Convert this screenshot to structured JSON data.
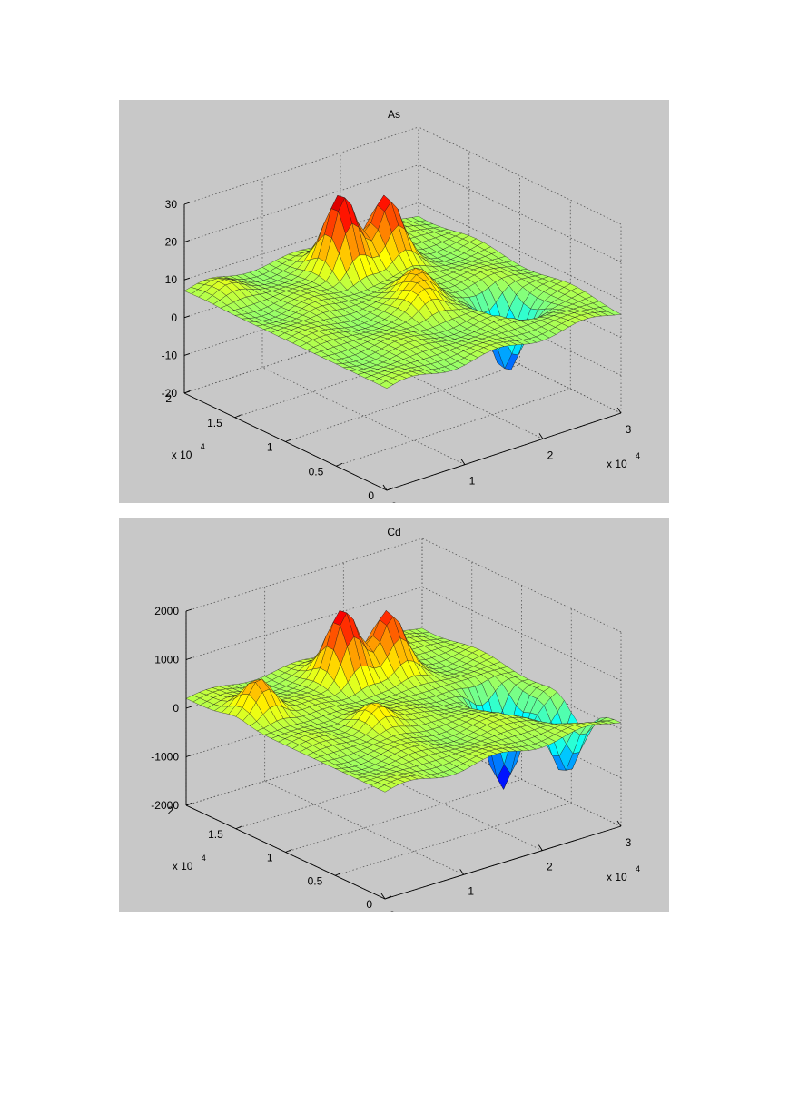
{
  "figure_title": "",
  "chart_data": [
    {
      "type": "surface",
      "title": "As",
      "xlabel": "",
      "ylabel": "",
      "zlabel": "",
      "x_multiplier": "x 10",
      "x_multiplier_exp": "4",
      "y_multiplier": "x 10",
      "y_multiplier_exp": "4",
      "xlim": [
        0,
        30000
      ],
      "ylim": [
        0,
        20000
      ],
      "zlim": [
        -20,
        30
      ],
      "x_ticks": [
        "0",
        "1",
        "2",
        "3"
      ],
      "y_ticks": [
        "0",
        "0.5",
        "1",
        "1.5",
        "2"
      ],
      "z_ticks": [
        "-20",
        "-10",
        "0",
        "10",
        "20",
        "30"
      ],
      "grid": true,
      "colormap": "jet",
      "base_level": 7,
      "peaks": [
        {
          "x": 15000,
          "y": 16000,
          "z": 28
        },
        {
          "x": 20000,
          "y": 15500,
          "z": 24
        },
        {
          "x": 17000,
          "y": 10000,
          "z": 14
        },
        {
          "x": 15000,
          "y": 8000,
          "z": 12
        },
        {
          "x": 7000,
          "y": 12000,
          "z": 8
        },
        {
          "x": 23000,
          "y": 6000,
          "z": -12
        },
        {
          "x": 3000,
          "y": 18000,
          "z": 9
        }
      ]
    },
    {
      "type": "surface",
      "title": "Cd",
      "xlabel": "",
      "ylabel": "",
      "zlabel": "",
      "x_multiplier": "x 10",
      "x_multiplier_exp": "4",
      "y_multiplier": "x 10",
      "y_multiplier_exp": "4",
      "xlim": [
        0,
        30000
      ],
      "ylim": [
        0,
        20000
      ],
      "zlim": [
        -2000,
        2000
      ],
      "x_ticks": [
        "0",
        "1",
        "2",
        "3"
      ],
      "y_ticks": [
        "0",
        "0.5",
        "1",
        "1.5",
        "2"
      ],
      "z_ticks": [
        "-2000",
        "-1000",
        "0",
        "1000",
        "2000"
      ],
      "grid": true,
      "colormap": "jet",
      "base_level": 200,
      "peaks": [
        {
          "x": 15000,
          "y": 16000,
          "z": 1700
        },
        {
          "x": 20000,
          "y": 15500,
          "z": 1400
        },
        {
          "x": 3000,
          "y": 15000,
          "z": 1000
        },
        {
          "x": 10000,
          "y": 9000,
          "z": 700
        },
        {
          "x": 25000,
          "y": 8000,
          "z": -1800
        },
        {
          "x": 28000,
          "y": 4000,
          "z": -1200
        }
      ]
    }
  ]
}
